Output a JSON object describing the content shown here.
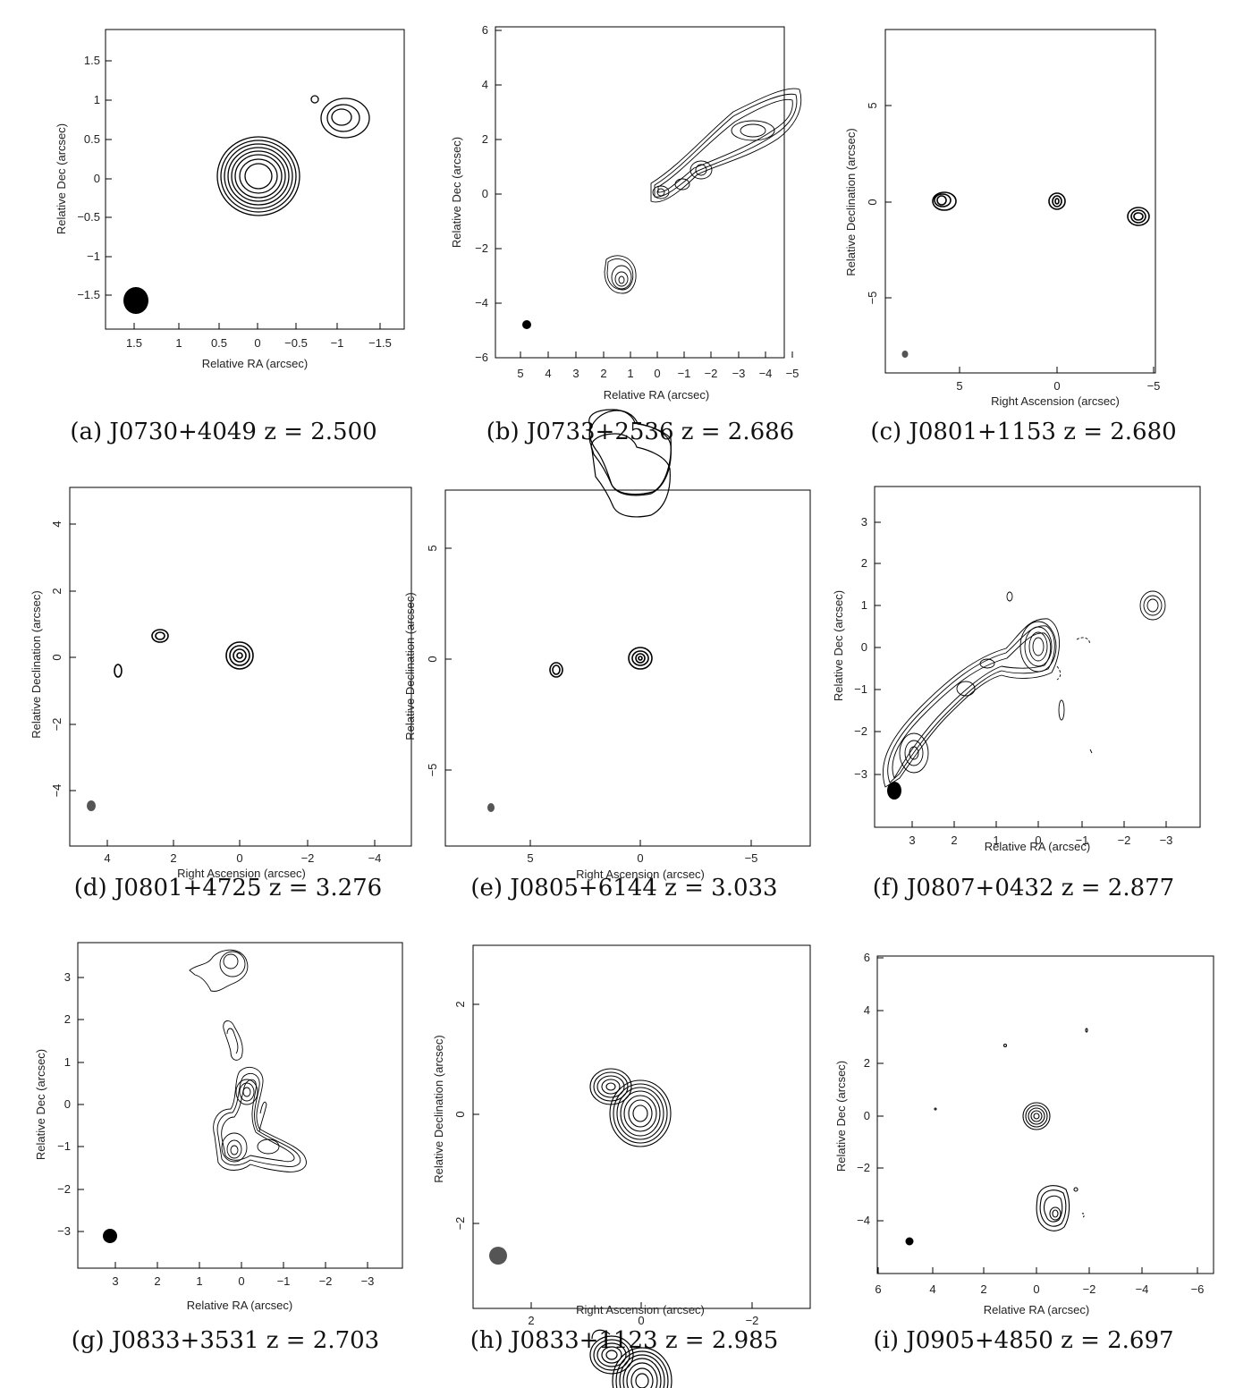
{
  "figure": {
    "panels": [
      {
        "id": "a",
        "caption": "(a) J0730+4049 z = 2.500",
        "xlabel": "Relative RA (arcsec)",
        "ylabel": "Relative Dec (arcsec)",
        "xticks": [
          "1.5",
          "1",
          "0.5",
          "0",
          "−0.5",
          "−1",
          "−1.5"
        ],
        "yticks": [
          "1.5",
          "1",
          "0.5",
          "0",
          "−0.5",
          "−1",
          "−1.5"
        ]
      },
      {
        "id": "b",
        "caption": "(b) J0733+2536 z = 2.686",
        "xlabel": "Relative RA (arcsec)",
        "ylabel": "Relative Dec (arcsec)",
        "xticks": [
          "5",
          "4",
          "3",
          "2",
          "1",
          "0",
          "−1",
          "−2",
          "−3",
          "−4",
          "−5"
        ],
        "yticks": [
          "6",
          "4",
          "2",
          "0",
          "−2",
          "−4",
          "−6"
        ]
      },
      {
        "id": "c",
        "caption": "(c) J0801+1153 z = 2.680",
        "xlabel": "Right Ascension  (arcsec)",
        "ylabel": "Relative Declination  (arcsec)",
        "xticks": [
          "5",
          "0",
          "−5"
        ],
        "yticks": [
          "5",
          "0",
          "−5"
        ]
      },
      {
        "id": "d",
        "caption": "(d) J0801+4725 z = 3.276",
        "xlabel": "Right Ascension  (arcsec)",
        "ylabel": "Relative Declination  (arcsec)",
        "xticks": [
          "4",
          "2",
          "0",
          "−2",
          "−4"
        ],
        "yticks": [
          "4",
          "2",
          "0",
          "−2",
          "−4"
        ]
      },
      {
        "id": "e",
        "caption": "(e) J0805+6144 z = 3.033",
        "xlabel": "Right Ascension  (arcsec)",
        "ylabel": "Relative Declination  (arcsec)",
        "xticks": [
          "5",
          "0",
          "−5"
        ],
        "yticks": [
          "5",
          "0",
          "−5"
        ]
      },
      {
        "id": "f",
        "caption": "(f) J0807+0432 z = 2.877",
        "xlabel": "Relative RA (arcsec)",
        "ylabel": "Relative Dec (arcsec)",
        "xticks": [
          "3",
          "2",
          "1",
          "0",
          "−1",
          "−2",
          "−3"
        ],
        "yticks": [
          "3",
          "2",
          "1",
          "0",
          "−1",
          "−2",
          "−3"
        ]
      },
      {
        "id": "g",
        "caption": "(g) J0833+3531 z = 2.703",
        "xlabel": "Relative RA (arcsec)",
        "ylabel": "Relative Dec (arcsec)",
        "xticks": [
          "3",
          "2",
          "1",
          "0",
          "−1",
          "−2",
          "−3"
        ],
        "yticks": [
          "3",
          "2",
          "1",
          "0",
          "−1",
          "−2",
          "−3"
        ]
      },
      {
        "id": "h",
        "caption": "(h) J0833+1123 z = 2.985",
        "xlabel": "Right Ascension  (arcsec)",
        "ylabel": "Relative Declination  (arcsec)",
        "xticks": [
          "2",
          "0",
          "−2"
        ],
        "yticks": [
          "2",
          "0",
          "−2"
        ]
      },
      {
        "id": "i",
        "caption": "(i) J0905+4850 z = 2.697",
        "xlabel": "Relative RA (arcsec)",
        "ylabel": "Relative Dec (arcsec)",
        "xticks": [
          "6",
          "4",
          "2",
          "0",
          "−2",
          "−4",
          "−6"
        ],
        "yticks": [
          "6",
          "4",
          "2",
          "0",
          "−2",
          "−4"
        ]
      }
    ]
  }
}
